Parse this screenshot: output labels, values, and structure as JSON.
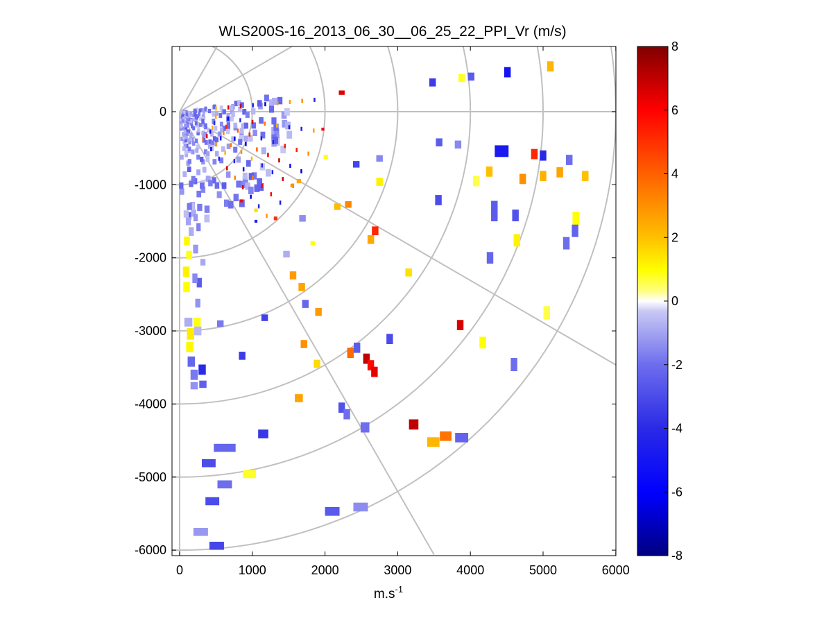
{
  "chart_data": {
    "type": "polar-ppi-scatter",
    "title": "WLS200S-16_2013_06_30__06_25_22_PPI_Vr (m/s)",
    "xlabel_main": "m.s",
    "xlabel_sup": "-1",
    "ylabel": "",
    "xlim": [
      -100,
      6000
    ],
    "ylim": [
      -6100,
      900
    ],
    "x_ticks": [
      0,
      1000,
      2000,
      3000,
      4000,
      5000,
      6000
    ],
    "x_tick_labels": [
      "0",
      "1000",
      "2000",
      "3000",
      "4000",
      "5000",
      "6000"
    ],
    "y_ticks": [
      0,
      -1000,
      -2000,
      -3000,
      -4000,
      -5000,
      -6000
    ],
    "y_tick_labels": [
      "0",
      "-1000",
      "-2000",
      "-3000",
      "-4000",
      "-5000",
      "-6000"
    ],
    "grid": {
      "range_rings_m": [
        1000,
        2000,
        3000,
        4000,
        5000,
        6000
      ],
      "spokes_deg": [
        -90,
        -60,
        -30,
        0,
        30,
        60
      ]
    },
    "colorbar": {
      "range": [
        -8,
        8
      ],
      "tick_values": [
        8,
        6,
        4,
        2,
        0,
        -2,
        -4,
        -6,
        -8
      ],
      "tick_labels": [
        "8",
        "6",
        "4",
        "2",
        "0",
        "-2",
        "-4",
        "-6",
        "-8"
      ],
      "low_color": "#000080",
      "high_color": "#800000"
    },
    "series": [
      {
        "name": "radial_velocity_m_s",
        "points": [
          {
            "x": 4510,
            "y": 540,
            "v": -5.0,
            "w": 90,
            "h": 140
          },
          {
            "x": 5100,
            "y": 620,
            "v": 2.2,
            "w": 90,
            "h": 140
          },
          {
            "x": 3480,
            "y": 400,
            "v": -3.5,
            "w": 90,
            "h": 110
          },
          {
            "x": 3880,
            "y": 460,
            "v": 0.8,
            "w": 90,
            "h": 110
          },
          {
            "x": 4010,
            "y": 480,
            "v": -2.5,
            "w": 90,
            "h": 110
          },
          {
            "x": 2230,
            "y": 260,
            "v": 6.5,
            "w": 80,
            "h": 60
          },
          {
            "x": 3570,
            "y": -420,
            "v": -2.5,
            "w": 90,
            "h": 110
          },
          {
            "x": 3830,
            "y": -450,
            "v": -1.5,
            "w": 90,
            "h": 110
          },
          {
            "x": 4430,
            "y": -540,
            "v": -4.8,
            "w": 190,
            "h": 160
          },
          {
            "x": 4880,
            "y": -580,
            "v": 5.2,
            "w": 90,
            "h": 140
          },
          {
            "x": 5000,
            "y": -600,
            "v": -4.0,
            "w": 90,
            "h": 140
          },
          {
            "x": 5360,
            "y": -660,
            "v": -2.0,
            "w": 90,
            "h": 140
          },
          {
            "x": 4260,
            "y": -820,
            "v": 2.0,
            "w": 90,
            "h": 140
          },
          {
            "x": 4080,
            "y": -950,
            "v": 0.6,
            "w": 90,
            "h": 140
          },
          {
            "x": 4720,
            "y": -920,
            "v": 3.0,
            "w": 90,
            "h": 140
          },
          {
            "x": 5000,
            "y": -880,
            "v": 2.3,
            "w": 90,
            "h": 140
          },
          {
            "x": 5230,
            "y": -830,
            "v": 2.6,
            "w": 90,
            "h": 140
          },
          {
            "x": 5580,
            "y": -880,
            "v": 2.0,
            "w": 90,
            "h": 140
          },
          {
            "x": 2430,
            "y": -720,
            "v": -3.2,
            "w": 90,
            "h": 90
          },
          {
            "x": 2750,
            "y": -640,
            "v": -1.5,
            "w": 90,
            "h": 90
          },
          {
            "x": 2010,
            "y": -620,
            "v": 0.9,
            "w": 60,
            "h": 60
          },
          {
            "x": 2750,
            "y": -960,
            "v": 1.2,
            "w": 90,
            "h": 110
          },
          {
            "x": 3560,
            "y": -1210,
            "v": -3.0,
            "w": 90,
            "h": 140
          },
          {
            "x": 4330,
            "y": -1360,
            "v": -2.5,
            "w": 90,
            "h": 280
          },
          {
            "x": 4620,
            "y": -1420,
            "v": -2.8,
            "w": 90,
            "h": 160
          },
          {
            "x": 5450,
            "y": -1460,
            "v": 1.0,
            "w": 90,
            "h": 180
          },
          {
            "x": 5440,
            "y": -1630,
            "v": -2.3,
            "w": 90,
            "h": 170
          },
          {
            "x": 5320,
            "y": -1800,
            "v": -2.0,
            "w": 90,
            "h": 170
          },
          {
            "x": 4640,
            "y": -1760,
            "v": 1.2,
            "w": 90,
            "h": 170
          },
          {
            "x": 4270,
            "y": -2000,
            "v": -2.2,
            "w": 90,
            "h": 160
          },
          {
            "x": 2170,
            "y": -1300,
            "v": 2.1,
            "w": 90,
            "h": 90
          },
          {
            "x": 2320,
            "y": -1270,
            "v": 3.2,
            "w": 90,
            "h": 90
          },
          {
            "x": 2690,
            "y": -1630,
            "v": 5.2,
            "w": 90,
            "h": 120
          },
          {
            "x": 2630,
            "y": -1750,
            "v": 2.5,
            "w": 90,
            "h": 120
          },
          {
            "x": 1690,
            "y": -1460,
            "v": -1.4,
            "w": 90,
            "h": 90
          },
          {
            "x": 1470,
            "y": -1950,
            "v": -0.8,
            "w": 90,
            "h": 90
          },
          {
            "x": 3150,
            "y": -2200,
            "v": 1.5,
            "w": 90,
            "h": 110
          },
          {
            "x": 1560,
            "y": -2240,
            "v": 2.8,
            "w": 90,
            "h": 110
          },
          {
            "x": 1680,
            "y": -2400,
            "v": 2.6,
            "w": 90,
            "h": 110
          },
          {
            "x": 1730,
            "y": -2630,
            "v": -2.2,
            "w": 90,
            "h": 110
          },
          {
            "x": 1910,
            "y": -2740,
            "v": 2.8,
            "w": 90,
            "h": 110
          },
          {
            "x": 1170,
            "y": -2820,
            "v": -3.3,
            "w": 90,
            "h": 90
          },
          {
            "x": 560,
            "y": -2900,
            "v": -1.8,
            "w": 90,
            "h": 90
          },
          {
            "x": 3860,
            "y": -2920,
            "v": 6.6,
            "w": 90,
            "h": 140
          },
          {
            "x": 5050,
            "y": -2750,
            "v": 0.6,
            "w": 90,
            "h": 180
          },
          {
            "x": 4170,
            "y": -3160,
            "v": 1.0,
            "w": 90,
            "h": 160
          },
          {
            "x": 2890,
            "y": -3110,
            "v": -3.0,
            "w": 90,
            "h": 140
          },
          {
            "x": 1710,
            "y": -3180,
            "v": 3.0,
            "w": 90,
            "h": 110
          },
          {
            "x": 2350,
            "y": -3300,
            "v": 3.8,
            "w": 90,
            "h": 140
          },
          {
            "x": 2440,
            "y": -3230,
            "v": -2.5,
            "w": 90,
            "h": 140
          },
          {
            "x": 2570,
            "y": -3380,
            "v": 7.0,
            "w": 90,
            "h": 140
          },
          {
            "x": 2630,
            "y": -3470,
            "v": 5.8,
            "w": 90,
            "h": 140
          },
          {
            "x": 2680,
            "y": -3560,
            "v": 6.4,
            "w": 90,
            "h": 140
          },
          {
            "x": 1890,
            "y": -3450,
            "v": 1.6,
            "w": 90,
            "h": 110
          },
          {
            "x": 860,
            "y": -3340,
            "v": -3.5,
            "w": 90,
            "h": 110
          },
          {
            "x": 4600,
            "y": -3460,
            "v": -2.0,
            "w": 90,
            "h": 180
          },
          {
            "x": 1640,
            "y": -3920,
            "v": 2.6,
            "w": 110,
            "h": 110
          },
          {
            "x": 2230,
            "y": -4050,
            "v": -2.8,
            "w": 90,
            "h": 140
          },
          {
            "x": 2300,
            "y": -4140,
            "v": -2.0,
            "w": 90,
            "h": 140
          },
          {
            "x": 2550,
            "y": -4320,
            "v": -2.0,
            "w": 120,
            "h": 140
          },
          {
            "x": 3220,
            "y": -4280,
            "v": 7.0,
            "w": 130,
            "h": 140
          },
          {
            "x": 3490,
            "y": -4520,
            "v": 2.2,
            "w": 170,
            "h": 130
          },
          {
            "x": 3660,
            "y": -4440,
            "v": 3.6,
            "w": 160,
            "h": 130
          },
          {
            "x": 3880,
            "y": -4460,
            "v": -2.3,
            "w": 180,
            "h": 130
          },
          {
            "x": 1150,
            "y": -4410,
            "v": -3.6,
            "w": 140,
            "h": 120
          },
          {
            "x": 620,
            "y": -4600,
            "v": -2.2,
            "w": 300,
            "h": 110
          },
          {
            "x": 400,
            "y": -4810,
            "v": -3.0,
            "w": 190,
            "h": 110
          },
          {
            "x": 960,
            "y": -4960,
            "v": 0.8,
            "w": 180,
            "h": 110
          },
          {
            "x": 620,
            "y": -5100,
            "v": -2.0,
            "w": 200,
            "h": 110
          },
          {
            "x": 450,
            "y": -5330,
            "v": -3.0,
            "w": 190,
            "h": 110
          },
          {
            "x": 2100,
            "y": -5470,
            "v": -2.6,
            "w": 200,
            "h": 120
          },
          {
            "x": 2490,
            "y": -5410,
            "v": -1.4,
            "w": 200,
            "h": 120
          },
          {
            "x": 290,
            "y": -5750,
            "v": -1.2,
            "w": 200,
            "h": 110
          },
          {
            "x": 510,
            "y": -5940,
            "v": -3.2,
            "w": 200,
            "h": 110
          },
          {
            "x": 95,
            "y": -2400,
            "v": 1.0,
            "w": 90,
            "h": 140
          },
          {
            "x": 90,
            "y": -2190,
            "v": 1.2,
            "w": 90,
            "h": 140
          },
          {
            "x": 100,
            "y": -1770,
            "v": 1.1,
            "w": 80,
            "h": 120
          },
          {
            "x": 270,
            "y": -2340,
            "v": -2.5,
            "w": 70,
            "h": 130
          },
          {
            "x": 210,
            "y": -2280,
            "v": -1.5,
            "w": 70,
            "h": 130
          },
          {
            "x": 250,
            "y": -2620,
            "v": -1.3,
            "w": 70,
            "h": 120
          },
          {
            "x": 120,
            "y": -2880,
            "v": -0.8,
            "w": 110,
            "h": 120
          },
          {
            "x": 240,
            "y": -2880,
            "v": 0.9,
            "w": 100,
            "h": 120
          },
          {
            "x": 150,
            "y": -3040,
            "v": 1.3,
            "w": 100,
            "h": 160
          },
          {
            "x": 140,
            "y": -3220,
            "v": 1.1,
            "w": 100,
            "h": 140
          },
          {
            "x": 250,
            "y": -3000,
            "v": -0.6,
            "w": 100,
            "h": 120
          },
          {
            "x": 160,
            "y": -3420,
            "v": -2.2,
            "w": 100,
            "h": 140
          },
          {
            "x": 200,
            "y": -3600,
            "v": -1.8,
            "w": 100,
            "h": 140
          },
          {
            "x": 310,
            "y": -3530,
            "v": -4.0,
            "w": 100,
            "h": 140
          },
          {
            "x": 200,
            "y": -3750,
            "v": -1.3,
            "w": 100,
            "h": 100
          },
          {
            "x": 320,
            "y": -3730,
            "v": -2.4,
            "w": 100,
            "h": 100
          },
          {
            "x": 130,
            "y": -1960,
            "v": 0.9,
            "w": 80,
            "h": 110
          },
          {
            "x": 220,
            "y": -1880,
            "v": -1.2,
            "w": 70,
            "h": 120
          },
          {
            "x": 160,
            "y": -1640,
            "v": -0.8,
            "w": 70,
            "h": 120
          },
          {
            "x": 320,
            "y": -2060,
            "v": -0.9,
            "w": 70,
            "h": 90
          },
          {
            "x": 120,
            "y": -1500,
            "v": -1.0,
            "w": 70,
            "h": 110
          },
          {
            "x": 260,
            "y": -1580,
            "v": -1.6,
            "w": 60,
            "h": 110
          },
          {
            "x": 90,
            "y": -1400,
            "v": -0.5,
            "w": 70,
            "h": 100
          },
          {
            "x": 220,
            "y": -1450,
            "v": -1.2,
            "w": 60,
            "h": 100
          },
          {
            "x": 1830,
            "y": -1800,
            "v": 1.0,
            "w": 60,
            "h": 60
          },
          {
            "x": 1640,
            "y": -950,
            "v": 2.5,
            "w": 60,
            "h": 60
          },
          {
            "x": 1050,
            "y": -1350,
            "v": 1.5,
            "w": 50,
            "h": 50
          },
          {
            "x": 1320,
            "y": -1460,
            "v": 5.0,
            "w": 50,
            "h": 50
          },
          {
            "x": 850,
            "y": -1220,
            "v": 6.0,
            "w": 40,
            "h": 40
          },
          {
            "x": 1050,
            "y": -1500,
            "v": -4.5,
            "w": 40,
            "h": 40
          },
          {
            "x": 1550,
            "y": -1010,
            "v": 3.0,
            "w": 50,
            "h": 50
          },
          {
            "x": 1970,
            "y": -240,
            "v": 6.2,
            "w": 40,
            "h": 40
          }
        ]
      },
      {
        "name": "near_field_dense_cluster",
        "points_generated_from_seed": 7,
        "count": 320
      }
    ]
  }
}
